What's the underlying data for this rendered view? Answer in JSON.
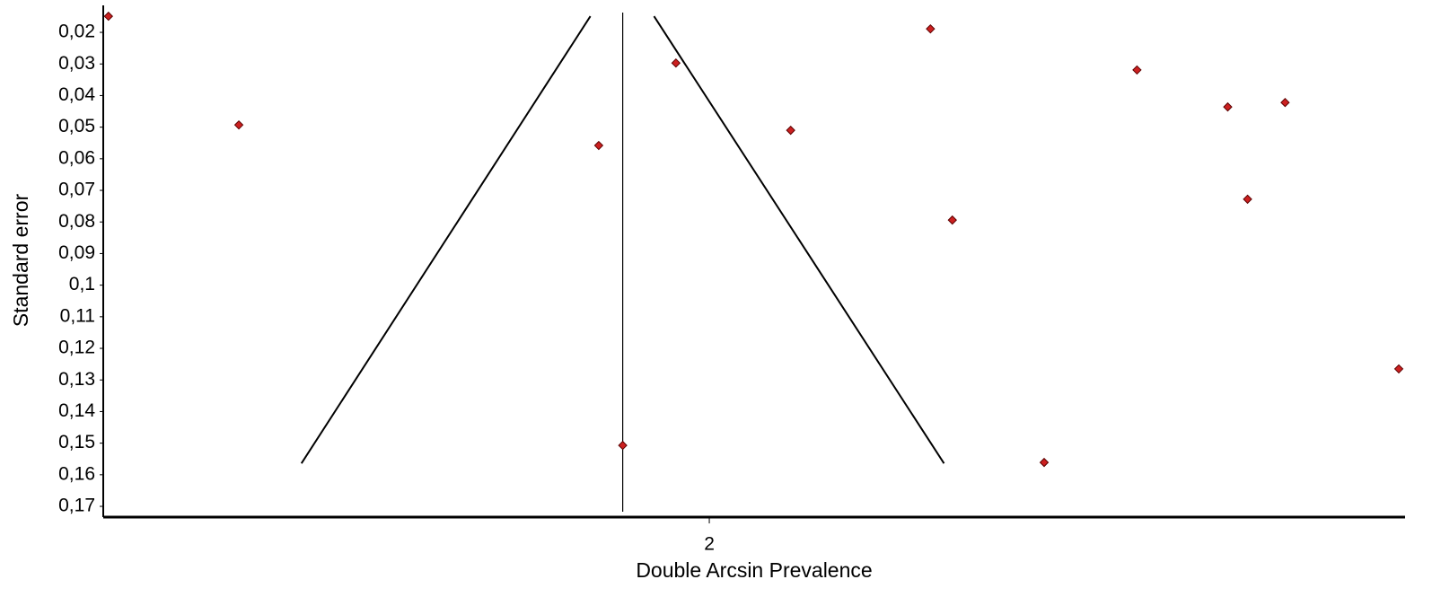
{
  "chart_data": {
    "type": "scatter",
    "xlabel": "Double Arcsin Prevalence",
    "ylabel": "Standard error",
    "xlim": [
      1.419,
      2.667
    ],
    "ylim": [
      0.0126,
      0.1734
    ],
    "y_inverted": true,
    "xticks": [
      2
    ],
    "yticks": [
      {
        "value": 0.02,
        "label": "0,02"
      },
      {
        "value": 0.03,
        "label": "0,03"
      },
      {
        "value": 0.04,
        "label": "0,04"
      },
      {
        "value": 0.05,
        "label": "0,05"
      },
      {
        "value": 0.06,
        "label": "0,06"
      },
      {
        "value": 0.07,
        "label": "0,07"
      },
      {
        "value": 0.08,
        "label": "0,08"
      },
      {
        "value": 0.09,
        "label": "0,09"
      },
      {
        "value": 0.1,
        "label": "0,1"
      },
      {
        "value": 0.11,
        "label": "0,11"
      },
      {
        "value": 0.12,
        "label": "0,12"
      },
      {
        "value": 0.13,
        "label": "0,13"
      },
      {
        "value": 0.14,
        "label": "0,14"
      },
      {
        "value": 0.15,
        "label": "0,15"
      },
      {
        "value": 0.16,
        "label": "0,16"
      },
      {
        "value": 0.17,
        "label": "0,17"
      }
    ],
    "pooled_estimate": 1.917,
    "funnel": [
      {
        "x": [
          1.886,
          1.609
        ],
        "values": [
          0.0149,
          0.1564
        ],
        "color": "#000000"
      },
      {
        "x": [
          1.947,
          2.225
        ],
        "values": [
          0.0149,
          0.1564
        ],
        "color": "#000000"
      }
    ],
    "series": [
      {
        "color": "#cc2020",
        "x": [
          1.424,
          1.549,
          1.894,
          1.917,
          1.968,
          2.078,
          2.212,
          2.233,
          2.321,
          2.41,
          2.497,
          2.516,
          2.552,
          2.661
        ],
        "values": [
          0.0149,
          0.0493,
          0.0558,
          0.1507,
          0.0297,
          0.051,
          0.0189,
          0.0794,
          0.1561,
          0.0319,
          0.0436,
          0.0728,
          0.0422,
          0.1265
        ]
      }
    ]
  }
}
